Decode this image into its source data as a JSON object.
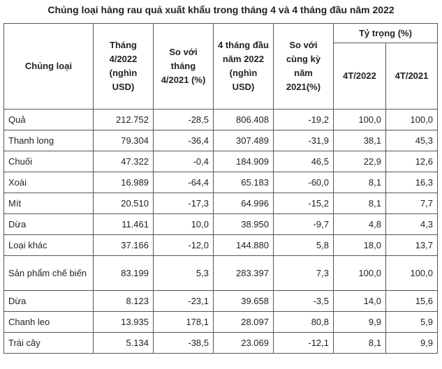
{
  "title": "Chủng loại hàng rau quả xuất khẩu trong tháng 4 và 4 tháng đầu năm 2022",
  "headers": {
    "col1": "Chủng loại",
    "col2": "Tháng 4/2022 (nghìn USD)",
    "col3": "So với tháng 4/2021 (%)",
    "col4": "4 tháng đầu năm 2022 (nghìn USD)",
    "col5": "So với cùng kỳ năm 2021(%)",
    "group": "Tỷ trọng (%)",
    "sub1": "4T/2022",
    "sub2": "4T/2021"
  },
  "rows": [
    [
      "Quả",
      "212.752",
      "-28,5",
      "806.408",
      "-19,2",
      "100,0",
      "100,0"
    ],
    [
      "Thanh long",
      "79.304",
      "-36,4",
      "307.489",
      "-31,9",
      "38,1",
      "45,3"
    ],
    [
      "Chuối",
      "47.322",
      "-0,4",
      "184.909",
      "46,5",
      "22,9",
      "12,6"
    ],
    [
      "Xoài",
      "16.989",
      "-64,4",
      "65.183",
      "-60,0",
      "8,1",
      "16,3"
    ],
    [
      "Mít",
      "20.510",
      "-17,3",
      "64.996",
      "-15,2",
      "8,1",
      "7,7"
    ],
    [
      "Dừa",
      "11.461",
      "10,0",
      "38.950",
      "-9,7",
      "4,8",
      "4,3"
    ],
    [
      "Loại khác",
      "37.166",
      "-12,0",
      "144.880",
      "5,8",
      "18,0",
      "13,7"
    ],
    [
      "Sản phẩm chế biến",
      "83.199",
      "5,3",
      "283.397",
      "7,3",
      "100,0",
      "100,0"
    ],
    [
      "Dừa",
      "8.123",
      "-23,1",
      "39.658",
      "-3,5",
      "14,0",
      "15,6"
    ],
    [
      "Chanh leo",
      "13.935",
      "178,1",
      "28.097",
      "80,8",
      "9,9",
      "5,9"
    ],
    [
      "Trái cây",
      "5.134",
      "-38,5",
      "23.069",
      "-12,1",
      "8,1",
      "9,9"
    ]
  ]
}
